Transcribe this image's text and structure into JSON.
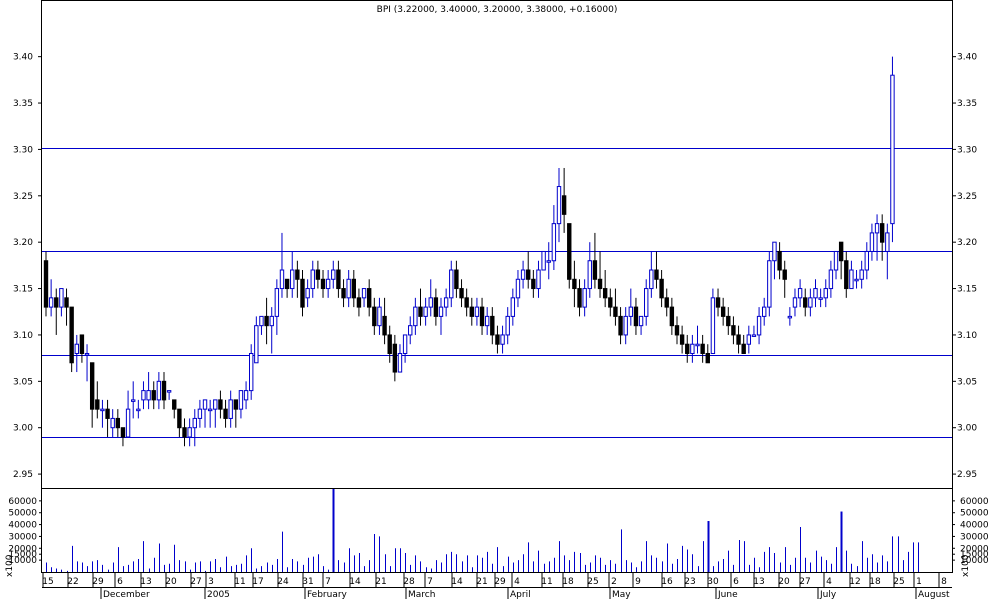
{
  "chart_data": [
    {
      "type": "candlestick",
      "title": "BPI (3.22000, 3.40000, 3.20000, 3.38000, +0.16000)",
      "ylim": [
        2.935,
        3.46
      ],
      "y_ticks": [
        2.95,
        3.0,
        3.05,
        3.1,
        3.15,
        3.2,
        3.25,
        3.3,
        3.35,
        3.4
      ],
      "y_tick_labels": [
        "2.95",
        "3.00",
        "3.05",
        "3.10",
        "3.15",
        "3.20",
        "3.25",
        "3.30",
        "3.35",
        "3.40"
      ],
      "reference_lines": [
        3.302,
        3.19,
        3.078,
        2.99
      ],
      "colors": {
        "up": "#0000cc",
        "down": "#000000",
        "flat": "#0000ff",
        "line": "#0000cc"
      },
      "candles": [
        [
          3.18,
          3.19,
          3.12,
          3.13
        ],
        [
          3.13,
          3.16,
          3.12,
          3.14
        ],
        [
          3.14,
          3.15,
          3.1,
          3.13
        ],
        [
          3.13,
          3.15,
          3.12,
          3.15
        ],
        [
          3.14,
          3.15,
          3.11,
          3.13
        ],
        [
          3.13,
          3.13,
          3.06,
          3.07
        ],
        [
          3.08,
          3.1,
          3.06,
          3.09
        ],
        [
          3.1,
          3.1,
          3.07,
          3.08
        ],
        [
          3.08,
          3.09,
          3.05,
          3.08
        ],
        [
          3.07,
          3.07,
          3.0,
          3.02
        ],
        [
          3.03,
          3.05,
          3.01,
          3.02
        ],
        [
          3.02,
          3.03,
          3.0,
          3.02
        ],
        [
          3.02,
          3.03,
          2.99,
          3.01
        ],
        [
          3.0,
          3.02,
          2.99,
          3.01
        ],
        [
          3.01,
          3.02,
          2.99,
          3.0
        ],
        [
          3.0,
          3.0,
          2.98,
          2.99
        ],
        [
          2.99,
          3.04,
          2.99,
          3.02
        ],
        [
          3.03,
          3.05,
          3.01,
          3.03
        ],
        [
          3.02,
          3.03,
          3.01,
          3.02
        ],
        [
          3.03,
          3.05,
          3.02,
          3.04
        ],
        [
          3.03,
          3.06,
          3.02,
          3.04
        ],
        [
          3.04,
          3.05,
          3.02,
          3.03
        ],
        [
          3.03,
          3.06,
          3.02,
          3.05
        ],
        [
          3.05,
          3.06,
          3.02,
          3.03
        ],
        [
          3.04,
          3.04,
          3.03,
          3.04
        ],
        [
          3.03,
          3.03,
          3.01,
          3.02
        ],
        [
          3.02,
          3.02,
          2.99,
          3.0
        ],
        [
          3.0,
          3.01,
          2.98,
          2.99
        ],
        [
          2.99,
          3.01,
          2.98,
          3.0
        ],
        [
          3.0,
          3.02,
          2.98,
          3.01
        ],
        [
          3.01,
          3.03,
          3.0,
          3.02
        ],
        [
          3.02,
          3.03,
          3.0,
          3.03
        ],
        [
          3.02,
          3.03,
          3.0,
          3.02
        ],
        [
          3.02,
          3.03,
          3.0,
          3.03
        ],
        [
          3.03,
          3.04,
          3.01,
          3.02
        ],
        [
          3.02,
          3.03,
          3.0,
          3.01
        ],
        [
          3.01,
          3.04,
          3.0,
          3.03
        ],
        [
          3.03,
          3.03,
          3.0,
          3.02
        ],
        [
          3.02,
          3.04,
          3.01,
          3.04
        ],
        [
          3.03,
          3.05,
          3.02,
          3.04
        ],
        [
          3.04,
          3.09,
          3.03,
          3.08
        ],
        [
          3.07,
          3.12,
          3.07,
          3.11
        ],
        [
          3.11,
          3.12,
          3.1,
          3.12
        ],
        [
          3.12,
          3.14,
          3.09,
          3.11
        ],
        [
          3.11,
          3.13,
          3.08,
          3.12
        ],
        [
          3.12,
          3.16,
          3.1,
          3.15
        ],
        [
          3.15,
          3.21,
          3.14,
          3.17
        ],
        [
          3.16,
          3.16,
          3.14,
          3.15
        ],
        [
          3.15,
          3.19,
          3.14,
          3.17
        ],
        [
          3.17,
          3.18,
          3.14,
          3.16
        ],
        [
          3.16,
          3.17,
          3.12,
          3.13
        ],
        [
          3.14,
          3.16,
          3.13,
          3.15
        ],
        [
          3.15,
          3.18,
          3.14,
          3.17
        ],
        [
          3.17,
          3.18,
          3.15,
          3.16
        ],
        [
          3.16,
          3.17,
          3.14,
          3.15
        ],
        [
          3.15,
          3.17,
          3.14,
          3.16
        ],
        [
          3.16,
          3.18,
          3.15,
          3.17
        ],
        [
          3.17,
          3.18,
          3.14,
          3.15
        ],
        [
          3.15,
          3.16,
          3.13,
          3.14
        ],
        [
          3.14,
          3.17,
          3.13,
          3.16
        ],
        [
          3.16,
          3.17,
          3.13,
          3.14
        ],
        [
          3.14,
          3.15,
          3.12,
          3.13
        ],
        [
          3.14,
          3.15,
          3.13,
          3.15
        ],
        [
          3.15,
          3.16,
          3.12,
          3.13
        ],
        [
          3.13,
          3.14,
          3.1,
          3.11
        ],
        [
          3.11,
          3.14,
          3.1,
          3.13
        ],
        [
          3.12,
          3.14,
          3.09,
          3.1
        ],
        [
          3.1,
          3.11,
          3.07,
          3.08
        ],
        [
          3.09,
          3.1,
          3.05,
          3.06
        ],
        [
          3.06,
          3.09,
          3.06,
          3.08
        ],
        [
          3.08,
          3.1,
          3.07,
          3.1
        ],
        [
          3.1,
          3.12,
          3.09,
          3.11
        ],
        [
          3.11,
          3.14,
          3.1,
          3.13
        ],
        [
          3.13,
          3.15,
          3.11,
          3.12
        ],
        [
          3.12,
          3.14,
          3.11,
          3.13
        ],
        [
          3.13,
          3.16,
          3.12,
          3.14
        ],
        [
          3.14,
          3.15,
          3.11,
          3.12
        ],
        [
          3.12,
          3.14,
          3.1,
          3.13
        ],
        [
          3.13,
          3.15,
          3.12,
          3.14
        ],
        [
          3.14,
          3.18,
          3.13,
          3.17
        ],
        [
          3.17,
          3.18,
          3.14,
          3.15
        ],
        [
          3.15,
          3.16,
          3.13,
          3.14
        ],
        [
          3.14,
          3.15,
          3.12,
          3.13
        ],
        [
          3.13,
          3.14,
          3.11,
          3.12
        ],
        [
          3.12,
          3.14,
          3.11,
          3.13
        ],
        [
          3.13,
          3.14,
          3.1,
          3.11
        ],
        [
          3.11,
          3.13,
          3.1,
          3.12
        ],
        [
          3.12,
          3.13,
          3.09,
          3.1
        ],
        [
          3.1,
          3.11,
          3.08,
          3.09
        ],
        [
          3.09,
          3.11,
          3.08,
          3.1
        ],
        [
          3.1,
          3.13,
          3.09,
          3.12
        ],
        [
          3.12,
          3.15,
          3.11,
          3.14
        ],
        [
          3.14,
          3.17,
          3.13,
          3.16
        ],
        [
          3.16,
          3.18,
          3.15,
          3.17
        ],
        [
          3.17,
          3.19,
          3.15,
          3.16
        ],
        [
          3.16,
          3.17,
          3.14,
          3.15
        ],
        [
          3.15,
          3.18,
          3.14,
          3.17
        ],
        [
          3.17,
          3.19,
          3.17,
          3.19
        ],
        [
          3.18,
          3.2,
          3.16,
          3.18
        ],
        [
          3.18,
          3.24,
          3.17,
          3.22
        ],
        [
          3.22,
          3.28,
          3.2,
          3.26
        ],
        [
          3.25,
          3.28,
          3.21,
          3.23
        ],
        [
          3.22,
          3.22,
          3.15,
          3.16
        ],
        [
          3.16,
          3.18,
          3.13,
          3.15
        ],
        [
          3.15,
          3.16,
          3.12,
          3.13
        ],
        [
          3.13,
          3.16,
          3.12,
          3.15
        ],
        [
          3.15,
          3.2,
          3.14,
          3.18
        ],
        [
          3.18,
          3.21,
          3.15,
          3.16
        ],
        [
          3.16,
          3.19,
          3.14,
          3.15
        ],
        [
          3.15,
          3.17,
          3.13,
          3.14
        ],
        [
          3.14,
          3.15,
          3.12,
          3.13
        ],
        [
          3.13,
          3.15,
          3.11,
          3.12
        ],
        [
          3.12,
          3.13,
          3.09,
          3.1
        ],
        [
          3.1,
          3.13,
          3.09,
          3.12
        ],
        [
          3.12,
          3.15,
          3.11,
          3.13
        ],
        [
          3.13,
          3.14,
          3.1,
          3.11
        ],
        [
          3.11,
          3.12,
          3.1,
          3.12
        ],
        [
          3.12,
          3.16,
          3.11,
          3.15
        ],
        [
          3.15,
          3.19,
          3.14,
          3.17
        ],
        [
          3.17,
          3.19,
          3.15,
          3.16
        ],
        [
          3.16,
          3.17,
          3.13,
          3.14
        ],
        [
          3.14,
          3.15,
          3.12,
          3.13
        ],
        [
          3.13,
          3.14,
          3.1,
          3.11
        ],
        [
          3.11,
          3.12,
          3.09,
          3.1
        ],
        [
          3.1,
          3.11,
          3.08,
          3.09
        ],
        [
          3.09,
          3.1,
          3.07,
          3.08
        ],
        [
          3.08,
          3.1,
          3.07,
          3.09
        ],
        [
          3.09,
          3.11,
          3.08,
          3.09
        ],
        [
          3.09,
          3.1,
          3.07,
          3.08
        ],
        [
          3.08,
          3.09,
          3.07,
          3.07
        ],
        [
          3.08,
          3.15,
          3.08,
          3.14
        ],
        [
          3.14,
          3.15,
          3.12,
          3.13
        ],
        [
          3.13,
          3.14,
          3.11,
          3.12
        ],
        [
          3.12,
          3.13,
          3.1,
          3.11
        ],
        [
          3.11,
          3.12,
          3.09,
          3.1
        ],
        [
          3.1,
          3.11,
          3.08,
          3.09
        ],
        [
          3.09,
          3.1,
          3.08,
          3.08
        ],
        [
          3.09,
          3.11,
          3.08,
          3.1
        ],
        [
          3.1,
          3.11,
          3.1,
          3.1
        ],
        [
          3.1,
          3.13,
          3.09,
          3.12
        ],
        [
          3.12,
          3.14,
          3.11,
          3.13
        ],
        [
          3.13,
          3.19,
          3.12,
          3.18
        ],
        [
          3.18,
          3.2,
          3.16,
          3.2
        ],
        [
          3.19,
          3.2,
          3.16,
          3.17
        ],
        [
          3.17,
          3.18,
          3.14,
          3.16
        ],
        [
          3.12,
          3.13,
          3.11,
          3.12
        ],
        [
          3.13,
          3.15,
          3.12,
          3.14
        ],
        [
          3.14,
          3.16,
          3.13,
          3.15
        ],
        [
          3.14,
          3.15,
          3.12,
          3.13
        ],
        [
          3.13,
          3.15,
          3.12,
          3.14
        ],
        [
          3.14,
          3.16,
          3.13,
          3.15
        ],
        [
          3.14,
          3.15,
          3.13,
          3.14
        ],
        [
          3.14,
          3.16,
          3.13,
          3.15
        ],
        [
          3.15,
          3.18,
          3.14,
          3.17
        ],
        [
          3.17,
          3.19,
          3.16,
          3.19
        ],
        [
          3.2,
          3.2,
          3.16,
          3.18
        ],
        [
          3.18,
          3.19,
          3.14,
          3.15
        ],
        [
          3.15,
          3.18,
          3.15,
          3.17
        ],
        [
          3.16,
          3.17,
          3.15,
          3.16
        ],
        [
          3.16,
          3.18,
          3.15,
          3.17
        ],
        [
          3.17,
          3.2,
          3.16,
          3.19
        ],
        [
          3.19,
          3.22,
          3.18,
          3.21
        ],
        [
          3.21,
          3.23,
          3.18,
          3.22
        ],
        [
          3.22,
          3.23,
          3.18,
          3.2
        ],
        [
          3.19,
          3.22,
          3.16,
          3.21
        ],
        [
          3.22,
          3.4,
          3.2,
          3.38
        ]
      ],
      "volume": {
        "ylim": [
          0,
          70000
        ],
        "y_tick_values": [
          10000,
          15000,
          20000,
          30000,
          40000,
          50000,
          60000
        ],
        "y_tick_labels": [
          "10000",
          "15000",
          "20000",
          "30000",
          "40000",
          "50000",
          "60000"
        ],
        "unit_label": "x100",
        "values": [
          8000,
          4000,
          3000,
          2000,
          1000,
          22000,
          9000,
          8000,
          5000,
          9000,
          10000,
          6000,
          2000,
          8000,
          21000,
          5000,
          6000,
          9000,
          11000,
          26000,
          3000,
          12000,
          24000,
          6000,
          7000,
          23000,
          10000,
          9000,
          2000,
          8000,
          9000,
          1000,
          9000,
          11000,
          4000,
          13000,
          5000,
          6000,
          7000,
          14000,
          20000,
          3000,
          5000,
          8000,
          6000,
          11000,
          34000,
          4000,
          11000,
          9000,
          6000,
          12000,
          13000,
          15000,
          5000,
          2000,
          70000,
          10000,
          8000,
          20000,
          14000,
          16000,
          5000,
          10000,
          32000,
          30000,
          15000,
          5000,
          20000,
          20000,
          16000,
          6000,
          14000,
          9000,
          4000,
          3000,
          10000,
          8000,
          15000,
          17000,
          15000,
          9000,
          14000,
          4000,
          14000,
          12000,
          17000,
          7000,
          21000,
          5000,
          13000,
          8000,
          10000,
          15000,
          25000,
          9000,
          18000,
          7000,
          9000,
          12000,
          26000,
          14000,
          10000,
          17000,
          16000,
          6000,
          8000,
          14000,
          12000,
          6000,
          10000,
          7000,
          36000,
          10000,
          8000,
          4000,
          9000,
          26000,
          14000,
          12000,
          9000,
          24000,
          7000,
          11000,
          22000,
          19000,
          15000,
          5000,
          26000,
          43000,
          5000,
          9000,
          11000,
          18000,
          6000,
          27000,
          26000,
          6000,
          12000,
          4000,
          17000,
          21000,
          16000,
          8000,
          21000,
          6000,
          12000,
          38000,
          12000,
          8000,
          18000,
          13000,
          10000,
          7000,
          21000,
          51000,
          18000,
          7000,
          5000,
          26000,
          12000,
          15000,
          8000,
          14000,
          9000,
          30000,
          30000,
          10000,
          17000,
          25000,
          25000
        ]
      },
      "x_tick_labels": [
        "15",
        "22",
        "29",
        "6",
        "13",
        "20",
        "27",
        "3",
        "11",
        "17",
        "24",
        "31",
        "7",
        "14",
        "21",
        "28",
        "7",
        "14",
        "21",
        "29",
        "4",
        "11",
        "18",
        "25",
        "2",
        "9",
        "16",
        "23",
        "30",
        "6",
        "13",
        "20",
        "27",
        "4",
        "12",
        "18",
        "25",
        "1",
        "8"
      ],
      "month_labels": [
        "December",
        "2005",
        "February",
        "March",
        "April",
        "May",
        "June",
        "July",
        "August"
      ]
    }
  ]
}
